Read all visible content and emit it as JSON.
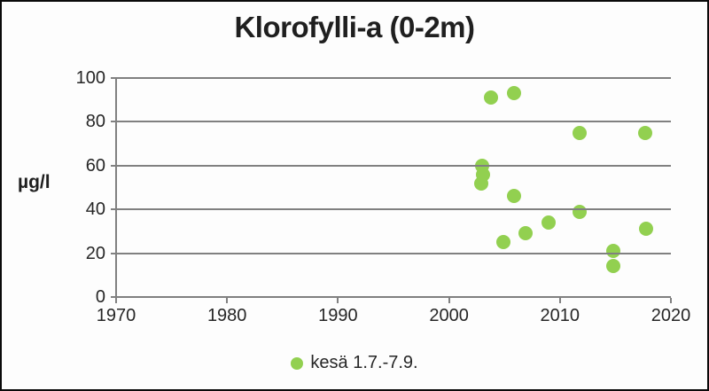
{
  "chart_data": {
    "type": "scatter",
    "title": "Klorofylli-a (0-2m)",
    "ylabel": "µg/l",
    "xlabel": "",
    "xlim": [
      1970,
      2020
    ],
    "ylim": [
      0,
      100
    ],
    "x_ticks": [
      1970,
      1980,
      1990,
      2000,
      2010,
      2020
    ],
    "y_ticks": [
      0,
      20,
      40,
      60,
      80,
      100
    ],
    "grid": "horizontal-only",
    "legend_position": "bottom-center",
    "marker_color": "#92d050",
    "axis_color": "#808080",
    "series": [
      {
        "name": "kesä 1.7.-7.9.",
        "color": "#92d050",
        "points": [
          {
            "x": 2002.9,
            "y": 52
          },
          {
            "x": 2003.0,
            "y": 60
          },
          {
            "x": 2003.1,
            "y": 56
          },
          {
            "x": 2003.8,
            "y": 91
          },
          {
            "x": 2004.9,
            "y": 25
          },
          {
            "x": 2005.9,
            "y": 93
          },
          {
            "x": 2005.9,
            "y": 46
          },
          {
            "x": 2006.9,
            "y": 29
          },
          {
            "x": 2009.0,
            "y": 34
          },
          {
            "x": 2011.8,
            "y": 75
          },
          {
            "x": 2011.8,
            "y": 39
          },
          {
            "x": 2014.8,
            "y": 21
          },
          {
            "x": 2014.8,
            "y": 14
          },
          {
            "x": 2017.7,
            "y": 75
          },
          {
            "x": 2017.8,
            "y": 31
          }
        ]
      }
    ]
  }
}
